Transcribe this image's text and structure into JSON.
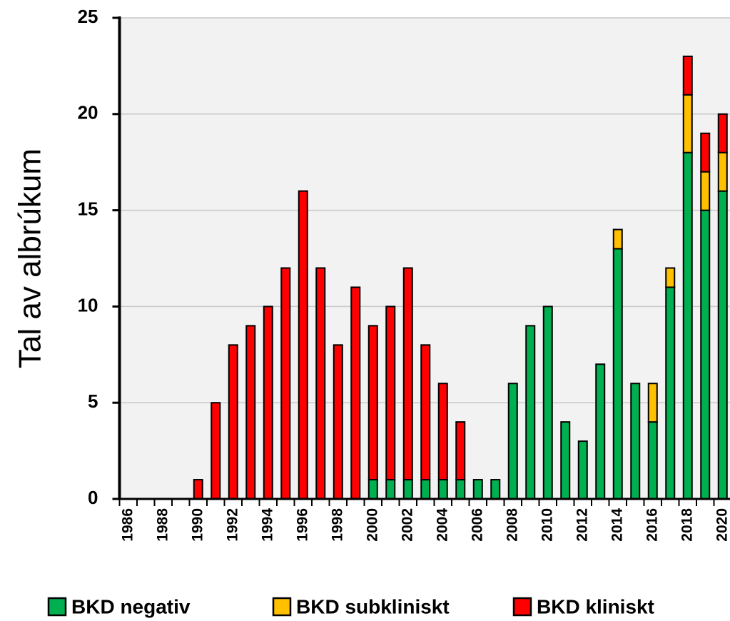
{
  "chart_data": {
    "type": "stacked_bar",
    "ylabel": "Tal av albrúkum",
    "categories": [
      "1986",
      null,
      "1988",
      null,
      "1990",
      null,
      "1992",
      null,
      "1994",
      null,
      "1996",
      null,
      "1998",
      null,
      "2000",
      null,
      "2002",
      null,
      "2004",
      null,
      "2006",
      null,
      "2008",
      null,
      "2010",
      null,
      "2012",
      null,
      "2014",
      null,
      "2016",
      null,
      "2018",
      null,
      "2020"
    ],
    "series": [
      {
        "name": "BKD negativ",
        "color": "#00b050",
        "values": [
          0,
          0,
          0,
          0,
          0,
          0,
          0,
          0,
          0,
          0,
          0,
          0,
          0,
          0,
          1,
          1,
          1,
          1,
          1,
          1,
          1,
          1,
          6,
          9,
          10,
          4,
          3,
          7,
          13,
          6,
          4,
          11,
          18,
          15,
          16
        ]
      },
      {
        "name": "BKD subkliniskt",
        "color": "#ffc000",
        "values": [
          0,
          0,
          0,
          0,
          0,
          0,
          0,
          0,
          0,
          0,
          0,
          0,
          0,
          0,
          0,
          0,
          0,
          0,
          0,
          0,
          0,
          0,
          0,
          0,
          0,
          0,
          0,
          0,
          1,
          0,
          2,
          1,
          3,
          2,
          2
        ]
      },
      {
        "name": "BKD kliniskt",
        "color": "#ff0000",
        "values": [
          0,
          0,
          0,
          0,
          1,
          5,
          8,
          9,
          10,
          12,
          16,
          12,
          8,
          11,
          8,
          9,
          11,
          7,
          5,
          3,
          0,
          0,
          0,
          0,
          0,
          0,
          0,
          0,
          0,
          0,
          0,
          0,
          2,
          2,
          2
        ]
      }
    ],
    "ylim": [
      0,
      25
    ],
    "yticks": [
      0,
      5,
      10,
      15,
      20,
      25
    ],
    "grid": true,
    "legend": "bottom"
  }
}
